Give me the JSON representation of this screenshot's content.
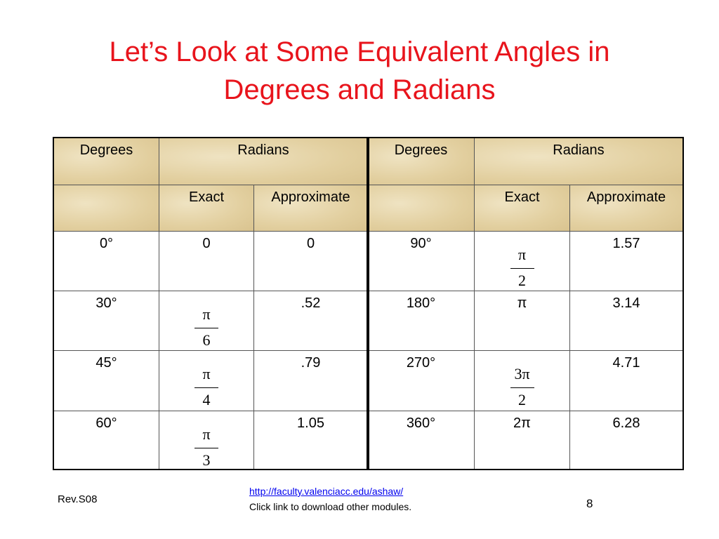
{
  "title": [
    "Let’s Look at Some Equivalent Angles in",
    "Degrees and Radians"
  ],
  "table": {
    "header": [
      "Degrees",
      "Radians",
      "Degrees",
      "Radians"
    ],
    "subheader": [
      "Exact",
      "Approximate",
      "Exact",
      "Approximate"
    ],
    "rows": [
      [
        "0°",
        "0",
        "0",
        "90°",
        {
          "num": "π",
          "den": "2"
        },
        "1.57"
      ],
      [
        "30°",
        {
          "num": "π",
          "den": "6"
        },
        ".52",
        "180°",
        "π",
        "3.14"
      ],
      [
        "45°",
        {
          "num": "π",
          "den": "4"
        },
        ".79",
        "270°",
        {
          "num": "3π",
          "den": "2"
        },
        "4.71"
      ],
      [
        "60°",
        {
          "num": "π",
          "den": "3"
        },
        "1.05",
        "360°",
        "2π",
        "6.28"
      ]
    ]
  },
  "footer": {
    "revision": "Rev.S08",
    "link": "http://faculty.valenciacc.edu/ashaw/",
    "note": "Click link to download other modules.",
    "page": "8"
  }
}
